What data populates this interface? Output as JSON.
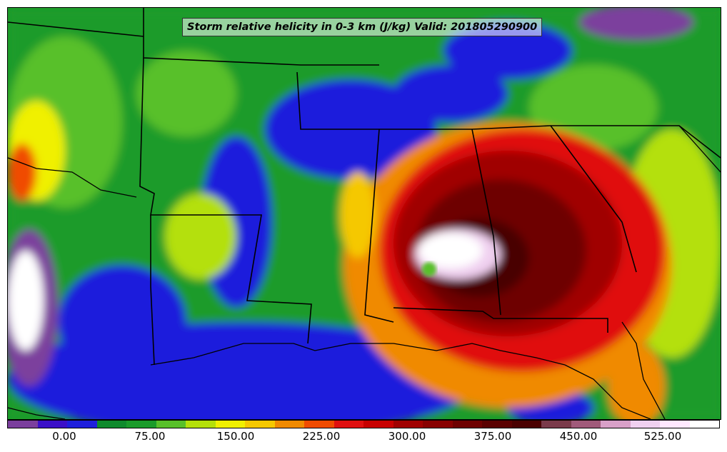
{
  "title": "Storm relative helicity in 0-3 km (J/kg) Valid: 201805290900",
  "colorbar": {
    "colors": [
      "#7b3f9d",
      "#3b10c8",
      "#1f1fdc",
      "#0f8a2c",
      "#1a9b2a",
      "#58c02a",
      "#b4e00a",
      "#f0f000",
      "#f5c800",
      "#f08a00",
      "#f04b00",
      "#e01010",
      "#c80000",
      "#a00000",
      "#880000",
      "#6e0000",
      "#5a0000",
      "#4a0000",
      "#7a3a4a",
      "#a05a7a",
      "#d8a0c8",
      "#f0d0f0",
      "#ffe8ff",
      "#ffffff"
    ],
    "tick_labels": [
      "0.00",
      "75.00",
      "150.00",
      "225.00",
      "300.00",
      "375.00",
      "450.00",
      "525.00"
    ]
  }
}
